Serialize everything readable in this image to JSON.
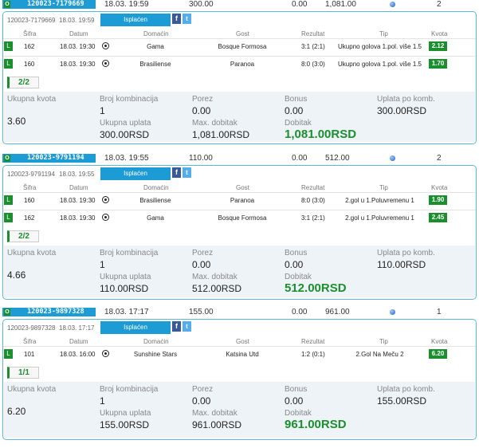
{
  "labels": {
    "isplacen": "Isplaćen",
    "sifra": "Šifra",
    "datum": "Datum",
    "domacin": "Domaćin",
    "gost": "Gost",
    "rezultat": "Rezultat",
    "tip": "Tip",
    "kvota": "Kvota",
    "ukupna_kvota": "Ukupna kvota",
    "broj_kombinacija": "Broj kombinacija",
    "porez": "Porez",
    "bonus": "Bonus",
    "uplata_po_komb": "Uplata po komb.",
    "ukupna_uplata": "Ukupna uplata",
    "max_dobitak": "Max. dobitak",
    "dobitak": "Dobitak",
    "status_letter": "O",
    "row_letter": "L",
    "fb": "f",
    "tw": "t"
  },
  "tickets": [
    {
      "id": "120023-7179669",
      "id_plain": "120023-7179669",
      "datetime": "18.03. 19:59",
      "stake": "300.00",
      "zero": "0.00",
      "payout": "1,081.00",
      "count": "2",
      "combo": "2/2",
      "rows": [
        {
          "sifra": "162",
          "datum": "18.03. 19:30",
          "domacin": "Gama",
          "gost": "Bosque Formosa",
          "rezultat": "3:1 (2:1)",
          "tip": "Ukupno golova 1.pol. više 1.5",
          "kvota": "2.12"
        },
        {
          "sifra": "160",
          "datum": "18.03. 19:30",
          "domacin": "Brasiliense",
          "gost": "Paranoa",
          "rezultat": "8:0 (3:0)",
          "tip": "Ukupno golova 1.pol. više 1.5",
          "kvota": "1.70"
        }
      ],
      "summary": {
        "ukupna_kvota": "3.60",
        "broj_kombinacija": "1",
        "porez": "0.00",
        "bonus": "0.00",
        "uplata_po_komb": "300.00RSD",
        "ukupna_uplata": "300.00RSD",
        "max_dobitak": "1,081.00RSD",
        "dobitak": "1,081.00RSD"
      }
    },
    {
      "id": "120023-9791194",
      "id_plain": "120023-9791194",
      "datetime": "18.03. 19:55",
      "stake": "110.00",
      "zero": "0.00",
      "payout": "512.00",
      "count": "2",
      "combo": "2/2",
      "rows": [
        {
          "sifra": "160",
          "datum": "18.03. 19:30",
          "domacin": "Brasiliense",
          "gost": "Paranoa",
          "rezultat": "8:0 (3:0)",
          "tip": "2.gol u 1.Poluvremenu 1",
          "kvota": "1.90"
        },
        {
          "sifra": "162",
          "datum": "18.03. 19:30",
          "domacin": "Gama",
          "gost": "Bosque Formosa",
          "rezultat": "3:1 (2:1)",
          "tip": "2.gol u 1.Poluvremenu 1",
          "kvota": "2.45"
        }
      ],
      "summary": {
        "ukupna_kvota": "4.66",
        "broj_kombinacija": "1",
        "porez": "0.00",
        "bonus": "0.00",
        "uplata_po_komb": "110.00RSD",
        "ukupna_uplata": "110.00RSD",
        "max_dobitak": "512.00RSD",
        "dobitak": "512.00RSD"
      }
    },
    {
      "id": "120023-9897328",
      "id_plain": "120023-9897328",
      "datetime": "18.03. 17:17",
      "stake": "155.00",
      "zero": "0.00",
      "payout": "961.00",
      "count": "1",
      "combo": "1/1",
      "rows": [
        {
          "sifra": "101",
          "datum": "18.03. 16:00",
          "domacin": "Sunshine Stars",
          "gost": "Katsina Utd",
          "rezultat": "1:2 (0:1)",
          "tip": "2.Gol Na Meču 2",
          "kvota": "6.20"
        }
      ],
      "summary": {
        "ukupna_kvota": "6.20",
        "broj_kombinacija": "1",
        "porez": "0.00",
        "bonus": "0.00",
        "uplata_po_komb": "155.00RSD",
        "ukupna_uplata": "155.00RSD",
        "max_dobitak": "961.00RSD",
        "dobitak": "961.00RSD"
      }
    }
  ]
}
